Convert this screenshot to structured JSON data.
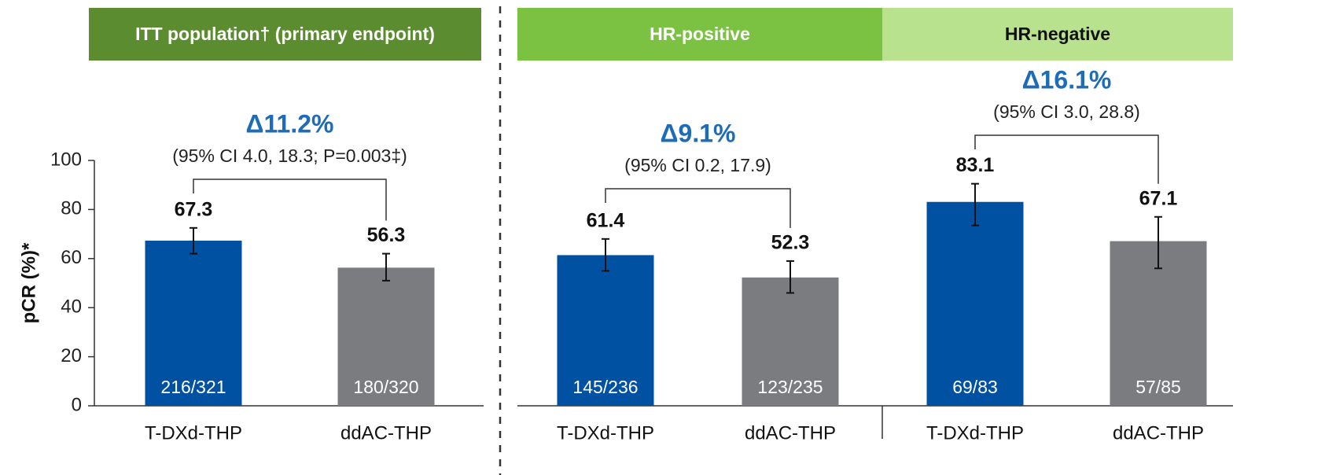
{
  "chart_data": [
    {
      "type": "bar",
      "title": "ITT population† (primary endpoint)",
      "title_background": "#5b8c2f",
      "title_color": "#ffffff",
      "categories": [
        "T-DXd-THP",
        "ddAC-THP"
      ],
      "values": [
        67.3,
        56.3
      ],
      "ci": [
        [
          62,
          72.5
        ],
        [
          51,
          62
        ]
      ],
      "colors": [
        "#0051a2",
        "#7b7c7f"
      ],
      "n_labels": [
        "216/321",
        "180/320"
      ],
      "delta": "Δ11.2%",
      "delta_ci": "(95% CI 4.0, 18.3; P=0.003‡)",
      "ylabel": "pCR (%)*",
      "ylim": [
        0,
        100
      ],
      "yticks": [
        0,
        20,
        40,
        60,
        80,
        100
      ]
    },
    {
      "type": "bar",
      "title": "HR-positive",
      "title_background": "#7cc242",
      "title_color": "#ffffff",
      "categories": [
        "T-DXd-THP",
        "ddAC-THP"
      ],
      "values": [
        61.4,
        52.3
      ],
      "ci": [
        [
          55,
          68
        ],
        [
          46,
          59
        ]
      ],
      "colors": [
        "#0051a2",
        "#7b7c7f"
      ],
      "n_labels": [
        "145/236",
        "123/235"
      ],
      "delta": "Δ9.1%",
      "delta_ci": "(95% CI 0.2, 17.9)",
      "ylim": [
        0,
        100
      ]
    },
    {
      "type": "bar",
      "title": "HR-negative",
      "title_background": "#b8e28e",
      "title_color": "#111111",
      "categories": [
        "T-DXd-THP",
        "ddAC-THP"
      ],
      "values": [
        83.1,
        67.1
      ],
      "ci": [
        [
          73.5,
          90.5
        ],
        [
          56,
          77
        ]
      ],
      "colors": [
        "#0051a2",
        "#7b7c7f"
      ],
      "n_labels": [
        "69/83",
        "57/85"
      ],
      "delta": "Δ16.1%",
      "delta_ci": "(95% CI 3.0, 28.8)",
      "ylim": [
        0,
        100
      ]
    }
  ]
}
